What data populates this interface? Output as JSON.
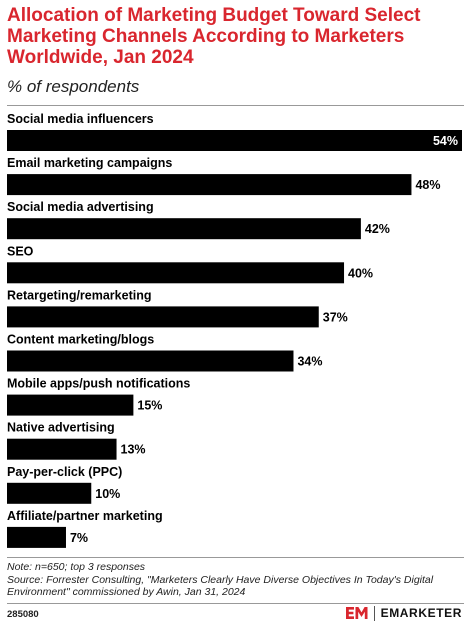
{
  "header": {
    "title": "Allocation of Marketing Budget Toward Select Marketing Channels According to Marketers Worldwide, Jan 2024",
    "subtitle": "% of respondents"
  },
  "chart_data": {
    "type": "bar",
    "orientation": "horizontal",
    "title": "Allocation of Marketing Budget Toward Select Marketing Channels According to Marketers Worldwide, Jan 2024",
    "subtitle": "% of respondents",
    "xlabel": "",
    "ylabel": "",
    "value_suffix": "%",
    "categories": [
      "Social media influencers",
      "Email marketing campaigns",
      "Social media advertising",
      "SEO",
      "Retargeting/remarketing",
      "Content marketing/blogs",
      "Mobile apps/push notifications",
      "Native advertising",
      "Pay-per-click (PPC)",
      "Affiliate/partner marketing"
    ],
    "values": [
      54,
      48,
      42,
      40,
      37,
      34,
      15,
      13,
      10,
      7
    ],
    "xlim": [
      0,
      54
    ],
    "bar_color": "#000000",
    "grid": false,
    "legend": "none"
  },
  "footer": {
    "note": "Note: n=650; top 3 responses",
    "source": "Source: Forrester Consulting, \"Marketers Clearly Have Diverse Objectives In Today's Digital Environment\" commissioned by Awin, Jan 31, 2024",
    "chart_id": "285080",
    "brand": "EMARKETER",
    "brand_color": "#d9262e"
  }
}
